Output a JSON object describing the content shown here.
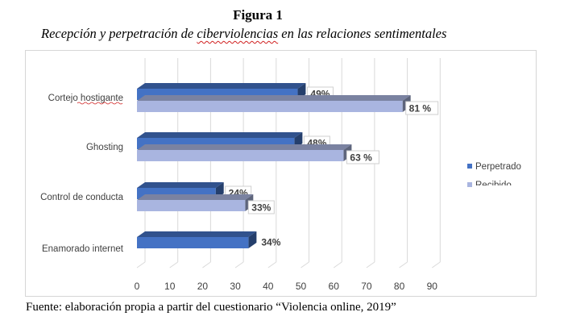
{
  "figure": {
    "number": "Figura 1",
    "title_prefix": "Recepción y perpetración de ",
    "title_underlined": "ciberviolencias",
    "title_suffix": " en las relaciones sentimentales",
    "source": "Fuente: elaboración propia a partir del cuestionario “Violencia online, 2019”"
  },
  "colors": {
    "perpetrado": "#4472c4",
    "recibido": "#a9b5e0",
    "grid": "#d9d9d9",
    "axis_text": "#404040"
  },
  "chart_data": {
    "type": "bar",
    "orientation": "horizontal",
    "style": "3d",
    "title": "",
    "categories": [
      "Cortejo hostigante",
      "Ghosting",
      "Control de conducta",
      "Enamorado internet"
    ],
    "series": [
      {
        "name": "Perpetrado",
        "values": [
          49,
          48,
          24,
          34
        ],
        "labels": [
          "49%",
          "48%",
          "24%",
          "34%"
        ]
      },
      {
        "name": "Recibido",
        "values": [
          81,
          63,
          33,
          null
        ],
        "labels": [
          "81 %",
          "63 %",
          "33%",
          ""
        ]
      }
    ],
    "x_ticks": [
      "0",
      "10",
      "20",
      "30",
      "40",
      "50",
      "60",
      "70",
      "80",
      "90"
    ],
    "xlim": [
      0,
      90
    ],
    "grid": true,
    "legend": "right"
  }
}
